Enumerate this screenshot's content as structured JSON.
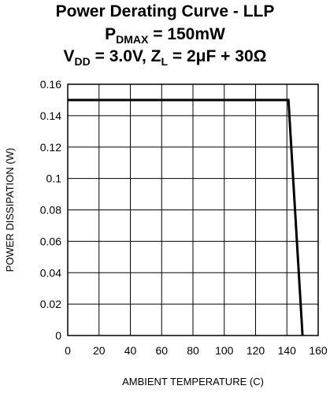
{
  "chart_data": {
    "type": "line",
    "title_line1": "Power Derating Curve - LLP",
    "title_line2": {
      "p": "P",
      "sub": "DMAX",
      "rest": " = 150mW"
    },
    "title_line3": {
      "v": "V",
      "v_sub": "DD",
      "mid": " = 3.0V, Z",
      "z_sub": "L",
      "rest": " = 2μF + 30Ω"
    },
    "xlabel": "AMBIENT TEMPERATURE (C)",
    "ylabel": "POWER DISSIPATION (W)",
    "xlim": [
      0,
      160
    ],
    "ylim": [
      0,
      0.16
    ],
    "x_ticks": [
      "0",
      "20",
      "40",
      "60",
      "80",
      "100",
      "120",
      "140",
      "160"
    ],
    "y_ticks": [
      "0",
      "0.02",
      "0.04",
      "0.06",
      "0.08",
      "0.1",
      "0.12",
      "0.14",
      "0.16"
    ],
    "grid": true,
    "series": [
      {
        "x": [
          0,
          141,
          150
        ],
        "y": [
          0.15,
          0.15,
          0
        ]
      }
    ],
    "colors": {
      "line": "#000000",
      "grid": "#000000"
    }
  }
}
